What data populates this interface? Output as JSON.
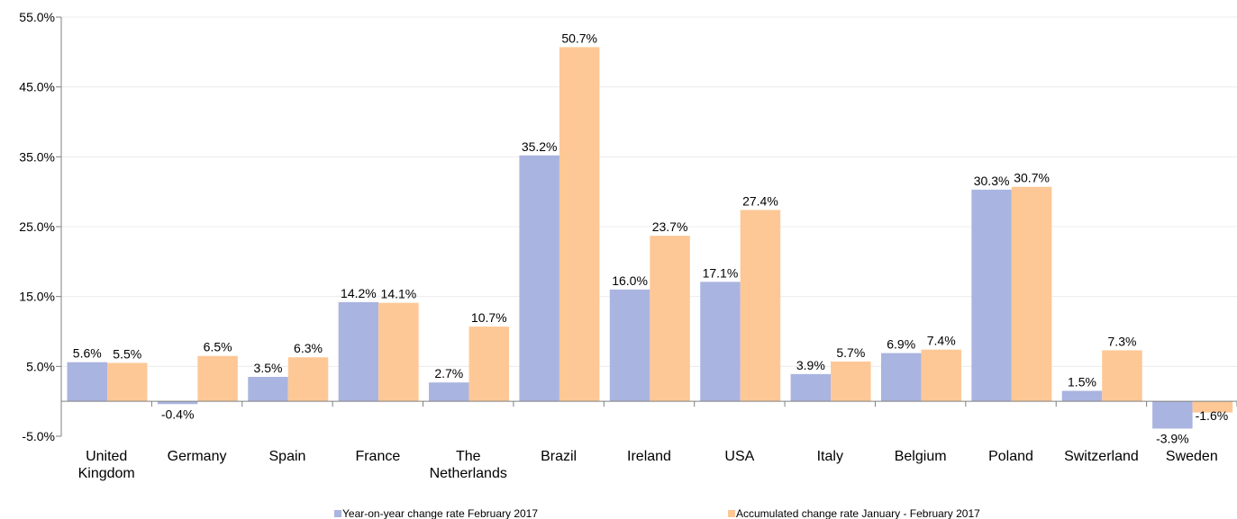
{
  "chart_data": {
    "type": "bar",
    "title": "",
    "xlabel": "",
    "ylabel": "",
    "categories": [
      [
        "United",
        "Kingdom"
      ],
      [
        "Germany"
      ],
      [
        "Spain"
      ],
      [
        "France"
      ],
      [
        "The",
        "Netherlands"
      ],
      [
        "Brazil"
      ],
      [
        "Ireland"
      ],
      [
        "USA"
      ],
      [
        "Italy"
      ],
      [
        "Belgium"
      ],
      [
        "Poland"
      ],
      [
        "Switzerland"
      ],
      [
        "Sweden"
      ]
    ],
    "series": [
      {
        "name": "Year-on-year change rate February 2017",
        "color": "#aab4e0",
        "values": [
          5.6,
          -0.4,
          3.5,
          14.2,
          2.7,
          35.2,
          16.0,
          17.1,
          3.9,
          6.9,
          30.3,
          1.5,
          -3.9
        ],
        "labels": [
          "5.6%",
          "-0.4%",
          "3.5%",
          "14.2%",
          "2.7%",
          "35.2%",
          "16.0%",
          "17.1%",
          "3.9%",
          "6.9%",
          "30.3%",
          "1.5%",
          "-3.9%"
        ]
      },
      {
        "name": "Accumulated change rate January - February 2017",
        "color": "#fdc896",
        "values": [
          5.5,
          6.5,
          6.3,
          14.1,
          10.7,
          50.7,
          23.7,
          27.4,
          5.7,
          7.4,
          30.7,
          7.3,
          -1.6
        ],
        "labels": [
          "5.5%",
          "6.5%",
          "6.3%",
          "14.1%",
          "10.7%",
          "50.7%",
          "23.7%",
          "27.4%",
          "5.7%",
          "7.4%",
          "30.7%",
          "7.3%",
          "-1.6%"
        ]
      }
    ],
    "ylim": [
      -5,
      55
    ],
    "yticks": [
      -5,
      5,
      15,
      25,
      35,
      45,
      55
    ],
    "ytick_labels": [
      "-5.0%",
      "5.0%",
      "15.0%",
      "25.0%",
      "35.0%",
      "45.0%",
      "55.0%"
    ],
    "grid": true,
    "legend_position": "bottom"
  }
}
